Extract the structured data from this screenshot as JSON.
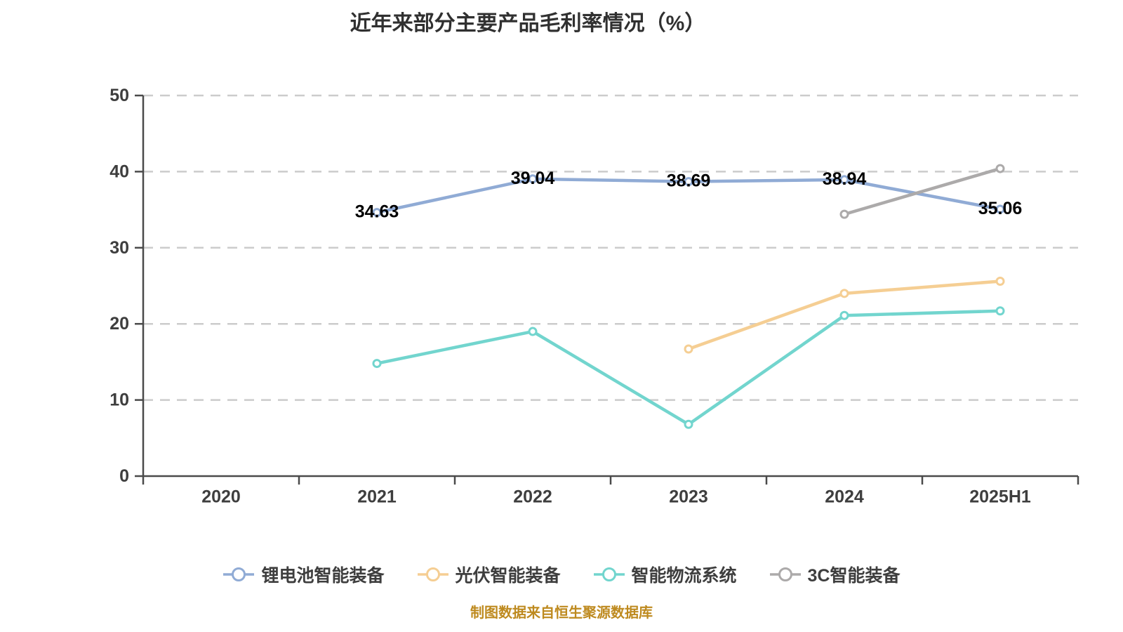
{
  "page": {
    "background": "#ffffff"
  },
  "chart_data": {
    "type": "line",
    "title": "近年来部分主要产品毛利率情况（%）",
    "categories": [
      "2020",
      "2021",
      "2022",
      "2023",
      "2024",
      "2025H1"
    ],
    "xlabel": "",
    "ylabel": "",
    "ylim": [
      0,
      50
    ],
    "y_ticks": [
      0,
      10,
      20,
      30,
      40,
      50
    ],
    "grid": {
      "horizontal": true,
      "style": "dashed",
      "color": "#cccccc"
    },
    "axis_color": "#4a4a4a",
    "tick_label_color": "#3e3e3e",
    "data_label_color": "#000000",
    "legend_position": "bottom",
    "series": [
      {
        "name": "锂电池智能装备",
        "color": "#90abd5",
        "values": [
          null,
          34.63,
          39.04,
          38.69,
          38.94,
          35.06
        ],
        "point_labels": [
          null,
          "34.63",
          "39.04",
          "38.69",
          "38.94",
          "35.06"
        ]
      },
      {
        "name": "光伏智能装备",
        "color": "#f5ce93",
        "values": [
          null,
          null,
          null,
          16.7,
          24.0,
          25.6
        ],
        "point_labels": null
      },
      {
        "name": "智能物流系统",
        "color": "#72d5ce",
        "values": [
          null,
          14.8,
          19.0,
          6.8,
          21.1,
          21.7
        ],
        "point_labels": null
      },
      {
        "name": "3C智能装备",
        "color": "#acaaaa",
        "values": [
          null,
          null,
          null,
          null,
          34.4,
          40.4
        ],
        "point_labels": null
      }
    ],
    "footnote": "制图数据来自恒生聚源数据库"
  }
}
